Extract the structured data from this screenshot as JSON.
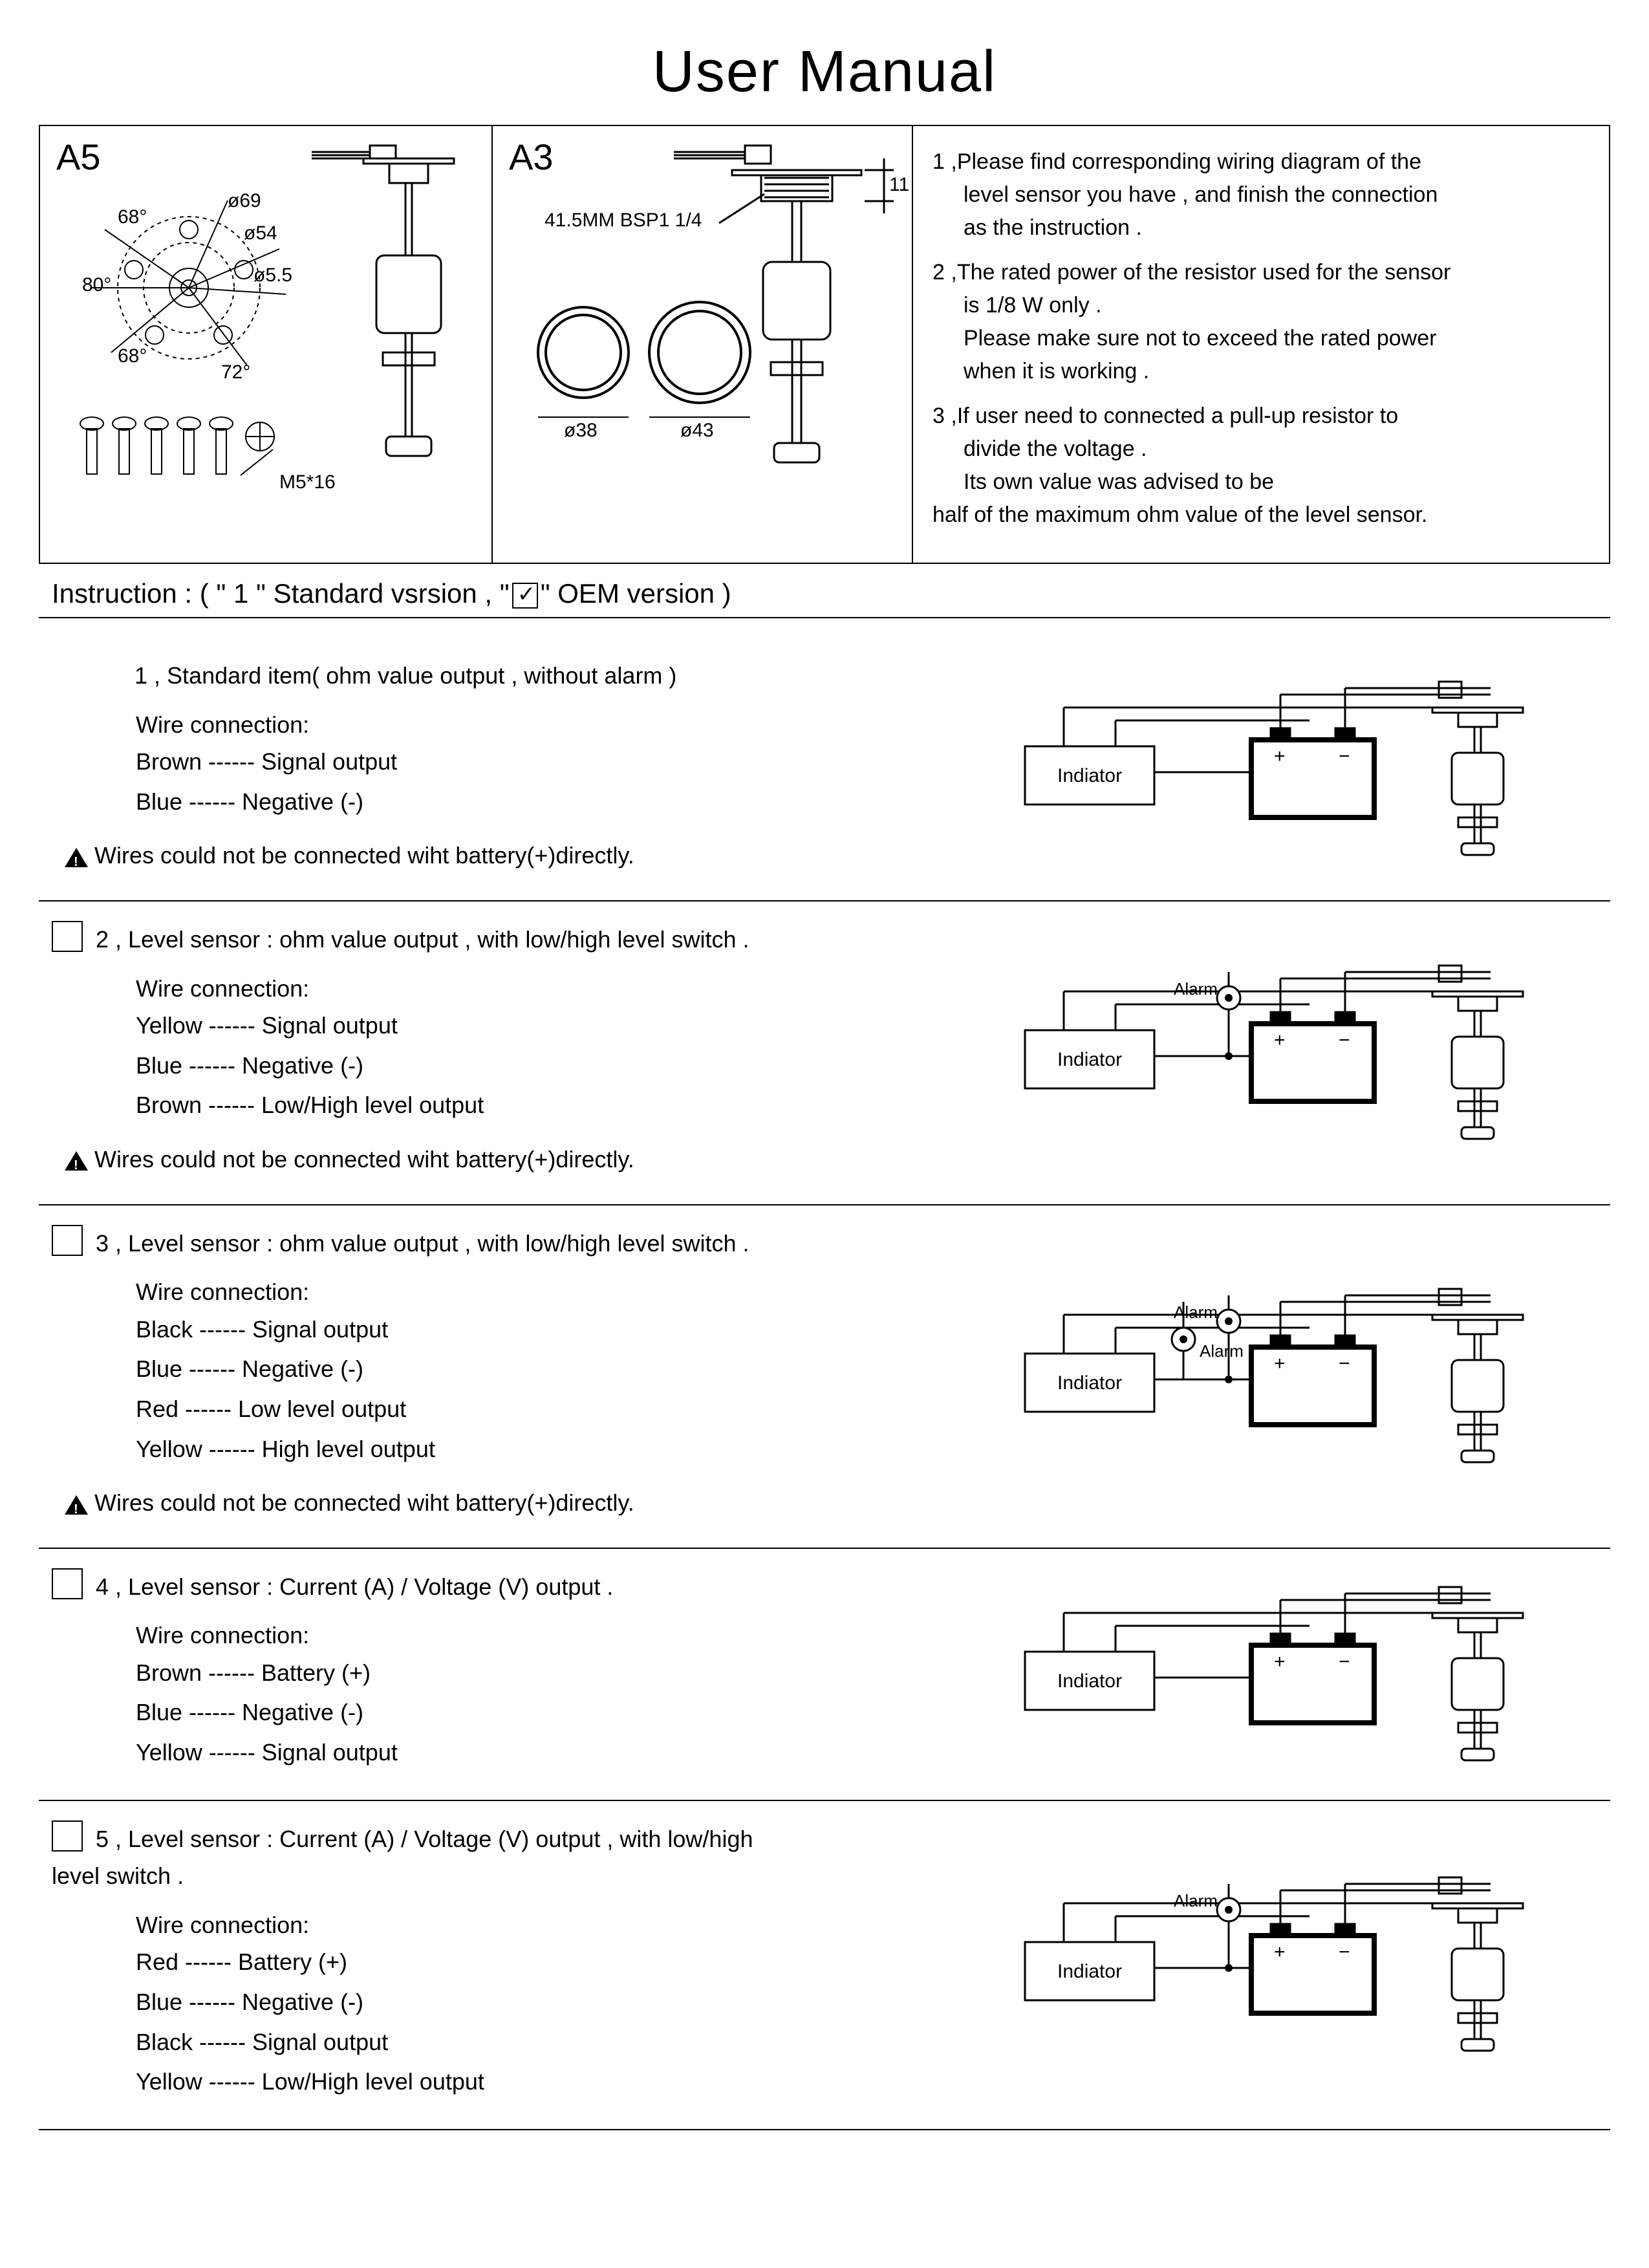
{
  "title": "User  Manual",
  "panels": {
    "a5": {
      "label": "A5",
      "angles": [
        "68°",
        "80°",
        "68°",
        "72°"
      ],
      "dims": [
        "ø69",
        "ø54",
        "ø5.5"
      ],
      "screw_label": "M5*16"
    },
    "a3": {
      "label": "A3",
      "dim_text": "41.5MM  BSP1 1/4",
      "dim_11": "11",
      "ring1": "ø38",
      "ring2": "ø43"
    }
  },
  "notes": [
    {
      "n": "1 ,",
      "lines": [
        "Please find corresponding wiring diagram of the",
        "level sensor you have , and finish the connection",
        "as the instruction ."
      ]
    },
    {
      "n": "2 ,",
      "lines": [
        "The rated power of the resistor used for the sensor",
        "is 1/8 W only .",
        "Please make sure not to exceed the rated power",
        "when it is working ."
      ]
    },
    {
      "n": "3 ,",
      "lines": [
        "If user need to connected a pull-up resistor to",
        "divide the voltage .",
        "Its own value was advised to be"
      ],
      "tail": "half of the maximum ohm value of the level sensor."
    }
  ],
  "instruction_line": {
    "prefix": "Instruction : ( \" 1 \" Standard vsrsion , \"",
    "suffix": "\" OEM version )"
  },
  "warning_text": "Wires could not be connected wiht battery(+)directly.",
  "wire_conn_label": "Wire connection:",
  "sections": [
    {
      "has_checkbox": false,
      "title": "1 , Standard item( ohm value output , without alarm )",
      "wires": [
        "Brown ------ Signal output",
        "Blue ------ Negative (-)"
      ],
      "warning": true,
      "diagram": {
        "alarms": 0
      }
    },
    {
      "has_checkbox": true,
      "title": "2 , Level sensor : ohm value output , with low/high level switch .",
      "wires": [
        "Yellow ------ Signal output",
        "Blue ------ Negative (-)",
        "Brown ------ Low/High level output"
      ],
      "warning": true,
      "diagram": {
        "alarms": 1
      }
    },
    {
      "has_checkbox": true,
      "title": "3 , Level sensor : ohm value output , with low/high level switch .",
      "wires": [
        "Black ------ Signal output",
        "Blue ------ Negative (-)",
        "Red ------ Low level output",
        "Yellow ------ High level output"
      ],
      "warning": true,
      "diagram": {
        "alarms": 2
      }
    },
    {
      "has_checkbox": true,
      "title": "4 , Level sensor : Current (A) / Voltage (V) output .",
      "wires": [
        "Brown ------ Battery (+)",
        "Blue ------ Negative (-)",
        "Yellow ------ Signal output"
      ],
      "warning": false,
      "diagram": {
        "alarms": 0
      }
    },
    {
      "has_checkbox": true,
      "title": "5 , Level sensor : Current (A) / Voltage (V) output , with low/high level switch .",
      "wires": [
        "Red ------ Battery (+)",
        "Blue ------ Negative (-)",
        "Black ------ Signal output",
        "Yellow ------ Low/High level output"
      ],
      "warning": false,
      "diagram": {
        "alarms": 1
      }
    }
  ],
  "diagram_labels": {
    "indicator": "Indiator",
    "alarm": "Alarm",
    "plus": "+",
    "minus": "−"
  },
  "colors": {
    "stroke": "#000000",
    "fill_light": "#ffffff",
    "fill_dark": "#000000"
  }
}
